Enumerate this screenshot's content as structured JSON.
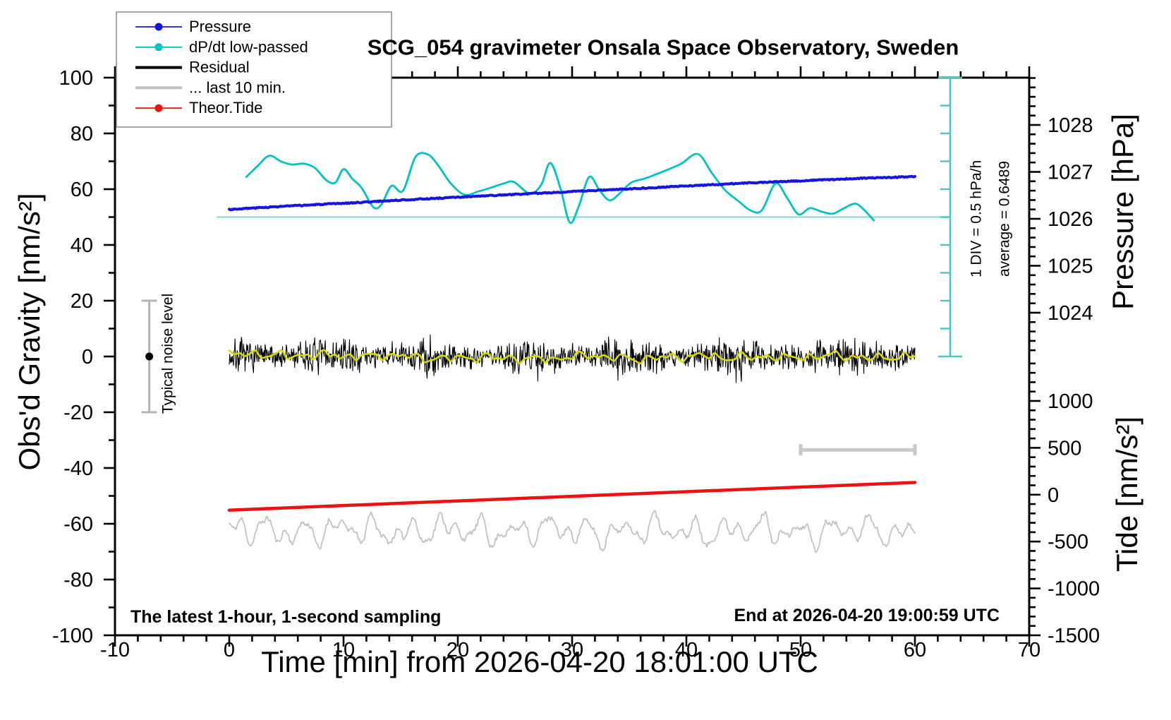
{
  "page": {
    "background": "#ffffff"
  },
  "chart_data": {
    "type": "line",
    "title": "SCG_054 gravimeter Onsala Space Observatory, Sweden",
    "xlabel": "Time [min] from 2026-04-20 18:01:00 UTC",
    "axes": {
      "left": {
        "label": "Obs'd Gravity [nm/s²]",
        "range": [
          -100,
          100
        ],
        "major_ticks": [
          100,
          80,
          60,
          40,
          20,
          0,
          -20,
          -40,
          -60,
          -80,
          -100
        ],
        "minor_step": 10
      },
      "bottom": {
        "range": [
          -10,
          70
        ],
        "major_ticks": [
          -10,
          0,
          10,
          20,
          30,
          40,
          50,
          60,
          70
        ],
        "minor_step": 2
      },
      "right_pressure": {
        "label": "Pressure [hPa]",
        "major_ticks": [
          1028,
          1027,
          1026,
          1025,
          1024
        ],
        "minor_step": 0.2
      },
      "right_tide": {
        "label": "Tide [nm/s²]",
        "major_ticks": [
          1000,
          500,
          0,
          -500,
          -1000,
          -1500
        ],
        "minor_step": 100
      }
    },
    "legend": {
      "entries": [
        {
          "label": "Pressure",
          "color": "#1414e6",
          "thick": false,
          "dot": true
        },
        {
          "label": "dP/dt low-passed",
          "color": "#00c3c3",
          "thick": false,
          "dot": true
        },
        {
          "label": "Residual",
          "color": "#000000",
          "thick": true,
          "dot": false
        },
        {
          "label": "... last 10 min.",
          "color": "#c2c2c2",
          "thick": true,
          "dot": false
        },
        {
          "label": "Theor.Tide",
          "color": "#ee1111",
          "thick": false,
          "dot": true
        }
      ]
    },
    "annotations": {
      "div_scale": "1 DIV = 0.5 hPa/h",
      "average": "average = 0.6489",
      "noise_level": "Typical noise level",
      "sampling": "The latest 1-hour, 1-second sampling",
      "end_at": "End at 2026-04-20 19:00:59 UTC"
    },
    "series": {
      "pressure": {
        "units": "hPa",
        "axis": "right_pressure",
        "anchors": [
          [
            0,
            1026.2
          ],
          [
            5,
            1026.27
          ],
          [
            10,
            1026.33
          ],
          [
            15,
            1026.4
          ],
          [
            20,
            1026.46
          ],
          [
            25,
            1026.52
          ],
          [
            30,
            1026.58
          ],
          [
            35,
            1026.64
          ],
          [
            40,
            1026.7
          ],
          [
            45,
            1026.76
          ],
          [
            50,
            1026.81
          ],
          [
            55,
            1026.86
          ],
          [
            60,
            1026.9
          ]
        ]
      },
      "dpdt_lowpassed": {
        "units": "hPa/h",
        "zero_at_gravity": 50,
        "gravity_units_per_hpa_per_h": 20,
        "div_value_hpa_per_h": 0.5,
        "anchors": [
          [
            1.5,
            0.72
          ],
          [
            2.5,
            0.92
          ],
          [
            3.5,
            1.1
          ],
          [
            4.5,
            1.0
          ],
          [
            5.5,
            0.94
          ],
          [
            6.5,
            0.96
          ],
          [
            7.5,
            0.88
          ],
          [
            8.5,
            0.66
          ],
          [
            9.3,
            0.62
          ],
          [
            10.0,
            0.86
          ],
          [
            10.8,
            0.68
          ],
          [
            11.6,
            0.52
          ],
          [
            12.6,
            0.18
          ],
          [
            13.3,
            0.22
          ],
          [
            14.2,
            0.56
          ],
          [
            15.2,
            0.47
          ],
          [
            16.3,
            1.08
          ],
          [
            17.4,
            1.12
          ],
          [
            18.3,
            0.92
          ],
          [
            19.4,
            0.6
          ],
          [
            20.6,
            0.4
          ],
          [
            21.8,
            0.46
          ],
          [
            22.8,
            0.52
          ],
          [
            24.0,
            0.6
          ],
          [
            24.9,
            0.63
          ],
          [
            26.3,
            0.42
          ],
          [
            27.3,
            0.58
          ],
          [
            28.1,
            0.97
          ],
          [
            29.0,
            0.5
          ],
          [
            29.8,
            -0.1
          ],
          [
            30.6,
            0.2
          ],
          [
            31.5,
            0.72
          ],
          [
            32.4,
            0.48
          ],
          [
            33.3,
            0.3
          ],
          [
            34.3,
            0.45
          ],
          [
            35.2,
            0.62
          ],
          [
            36.5,
            0.7
          ],
          [
            38.0,
            0.82
          ],
          [
            39.5,
            0.95
          ],
          [
            41.0,
            1.13
          ],
          [
            42.2,
            0.8
          ],
          [
            43.4,
            0.48
          ],
          [
            44.6,
            0.28
          ],
          [
            45.6,
            0.12
          ],
          [
            46.6,
            0.12
          ],
          [
            47.8,
            0.6
          ],
          [
            48.8,
            0.35
          ],
          [
            49.8,
            0.05
          ],
          [
            50.8,
            0.16
          ],
          [
            51.8,
            0.1
          ],
          [
            52.8,
            0.06
          ],
          [
            53.8,
            0.16
          ],
          [
            54.8,
            0.24
          ],
          [
            55.6,
            0.12
          ],
          [
            56.4,
            -0.06
          ]
        ]
      },
      "residual": {
        "units": "nm/s²",
        "mean": 0,
        "peak_amplitude": 8,
        "sampling": "1-second",
        "seed": 7
      },
      "residual_smoothed": {
        "units": "nm/s²",
        "amplitude": 2,
        "seed": 7
      },
      "last_10_min": {
        "units": "nm/s²",
        "offset_gravity": -62.5,
        "amplitude": 6,
        "seed": 11,
        "span_marker": {
          "t_range": [
            50,
            60
          ],
          "gravity": -33.5
        }
      },
      "theor_tide": {
        "units": "nm/s²",
        "axis": "right_tide",
        "points": [
          [
            0,
            -165
          ],
          [
            60,
            130
          ]
        ]
      },
      "noise_bar": {
        "t": -7,
        "gravity_range": [
          -20,
          20
        ]
      }
    },
    "colors": {
      "pressure": "#1414e6",
      "dpdt": "#00c3c3",
      "dpdt_reference": "#93d6d2",
      "dpdt_scalebar": "#4cc6c4",
      "residual": "#000000",
      "residual_smoothed": "#d9d900",
      "last_10_min": "#c2c2c2",
      "span_marker": "#c9c9c9",
      "tide": "#ee1111",
      "noise_bar": "#b5b5b5",
      "frame": "#000000",
      "legend_border": "#8a8a8a"
    }
  }
}
